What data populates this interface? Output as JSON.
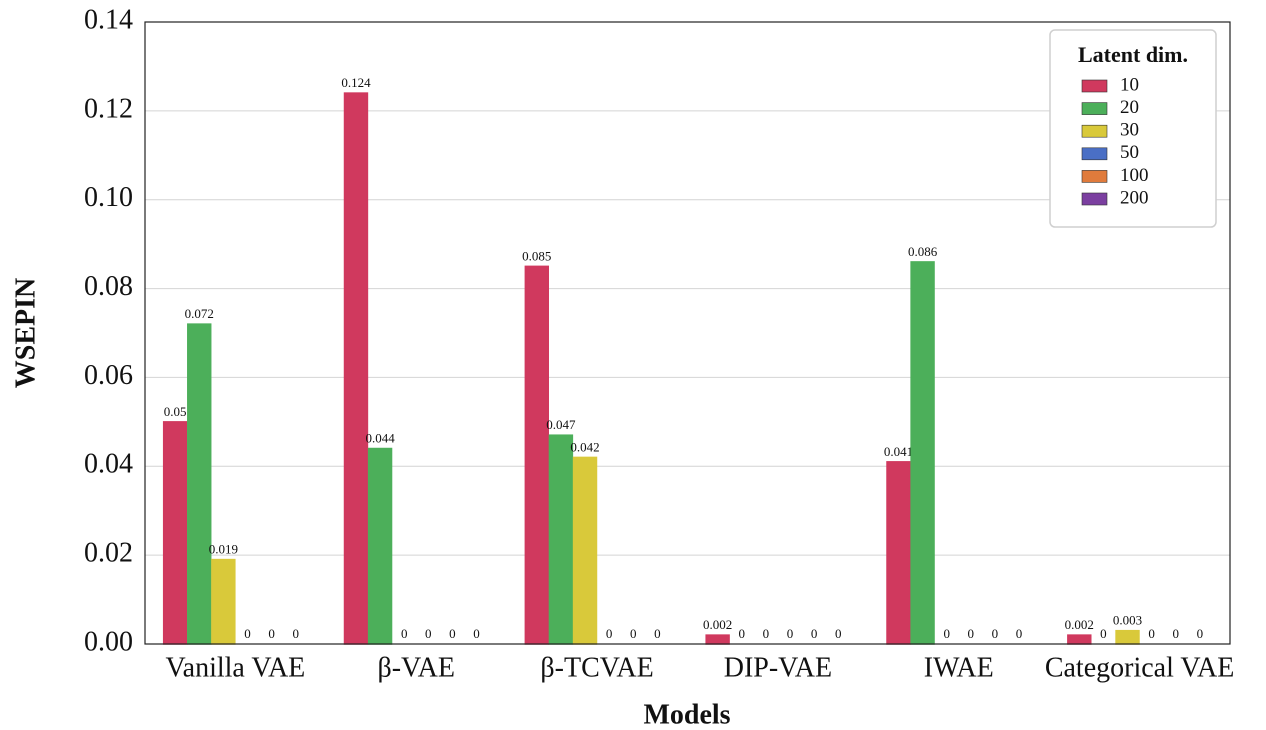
{
  "chart_data": {
    "type": "bar",
    "x_label": "Models",
    "y_label": "WSEPIN",
    "categories": [
      "Vanilla VAE",
      "β-VAE",
      "β-TCVAE",
      "DIP-VAE",
      "IWAE",
      "Categorical VAE"
    ],
    "series": [
      {
        "name": "10",
        "color": "#d0395e",
        "values": [
          0.05,
          0.124,
          0.085,
          0.002,
          0.041,
          0.002
        ]
      },
      {
        "name": "20",
        "color": "#4caf5a",
        "values": [
          0.072,
          0.044,
          0.047,
          0,
          0.086,
          0
        ]
      },
      {
        "name": "30",
        "color": "#d9c93a",
        "values": [
          0.019,
          0,
          0.042,
          0,
          0,
          0.003
        ]
      },
      {
        "name": "50",
        "color": "#4a6fc5",
        "values": [
          0,
          0,
          0,
          0,
          0,
          0
        ]
      },
      {
        "name": "100",
        "color": "#e07b3c",
        "values": [
          0,
          0,
          0,
          0,
          0,
          0
        ]
      },
      {
        "name": "200",
        "color": "#7b3fa0",
        "values": [
          0,
          0,
          0,
          0,
          0,
          0
        ]
      }
    ],
    "ylim": [
      0,
      0.14
    ],
    "yticks": [
      {
        "value": 0,
        "label": "0.00"
      },
      {
        "value": 0.02,
        "label": "0.02"
      },
      {
        "value": 0.04,
        "label": "0.04"
      },
      {
        "value": 0.06,
        "label": "0.06"
      },
      {
        "value": 0.08,
        "label": "0.08"
      },
      {
        "value": 0.1,
        "label": "0.10"
      },
      {
        "value": 0.12,
        "label": "0.12"
      },
      {
        "value": 0.14,
        "label": "0.14"
      }
    ],
    "grid": true,
    "legend_title": "Latent dim.",
    "legend": "upper right"
  }
}
